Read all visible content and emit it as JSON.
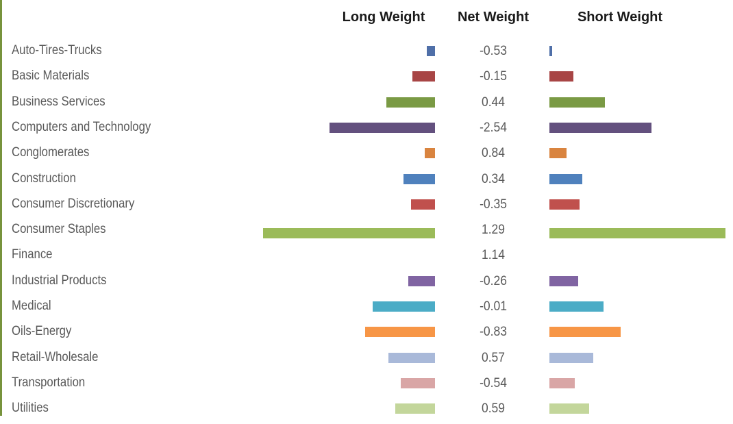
{
  "chart_data": {
    "type": "bar",
    "headers": {
      "long": "Long Weight",
      "net": "Net Weight",
      "short": "Short Weight"
    },
    "categories": [
      "Auto-Tires-Trucks",
      "Basic Materials",
      "Business Services",
      "Computers and Technology",
      "Conglomerates",
      "Construction",
      "Consumer Discretionary",
      "Consumer Staples",
      "Finance",
      "Industrial Products",
      "Medical",
      "Oils-Energy",
      "Retail-Wholesale",
      "Transportation",
      "Utilities"
    ],
    "net_labels": [
      "-0.53",
      "-0.15",
      "0.44",
      "-2.54",
      "0.84",
      "0.34",
      "-0.35",
      "1.29",
      "1.14",
      "-0.26",
      "-0.01",
      "-0.83",
      "0.57",
      "-0.54",
      "0.59"
    ],
    "series": [
      {
        "values": [
          0.6,
          1.6,
          3.4,
          7.4,
          0.7,
          2.2,
          1.7,
          12.1,
          null,
          1.9,
          4.4,
          4.9,
          3.3,
          2.4,
          2.8
        ]
      },
      {
        "values": [
          0.2,
          1.7,
          3.9,
          7.2,
          1.2,
          2.3,
          2.1,
          12.4,
          null,
          2.0,
          3.8,
          5.0,
          3.1,
          1.8,
          2.8
        ]
      }
    ],
    "colors": [
      "#4f6fa8",
      "#a84545",
      "#7a9a44",
      "#63507e",
      "#d9843f",
      "#4f81bd",
      "#c0504d",
      "#9bbb59",
      "#8064a2",
      "#4bacc6",
      "#f79646",
      "#a9b9d9",
      "#d9a6a6",
      "#c3d69b"
    ]
  }
}
